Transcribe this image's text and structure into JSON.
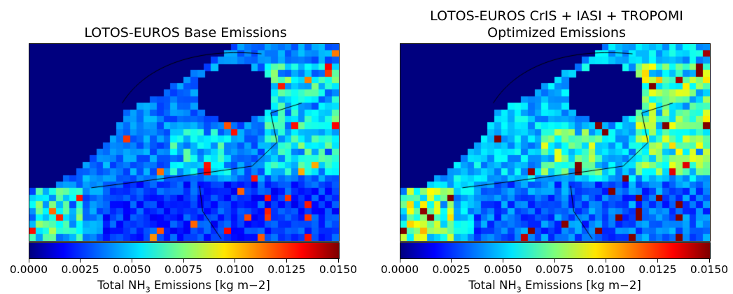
{
  "panels": [
    {
      "title_lines": [
        "LOTOS-EUROS Base Emissions"
      ],
      "emission_scale": 0.9
    },
    {
      "title_lines": [
        "LOTOS-EUROS CrIS + IASI + TROPOMI",
        "Optimized Emissions"
      ],
      "emission_scale": 1.15
    }
  ],
  "colorbar": {
    "colormap": "jet",
    "min": 0.0,
    "max": 0.015,
    "ticks": [
      "0.0000",
      "0.0025",
      "0.0050",
      "0.0075",
      "0.0100",
      "0.0125",
      "0.0150"
    ],
    "label_prefix": "Total NH",
    "label_subscript": "3",
    "label_suffix": " Emissions [kg m",
    "label_superscript": "−2]"
  },
  "colors": {
    "background_ocean": "#00007f",
    "border_lines": "#000000"
  }
}
